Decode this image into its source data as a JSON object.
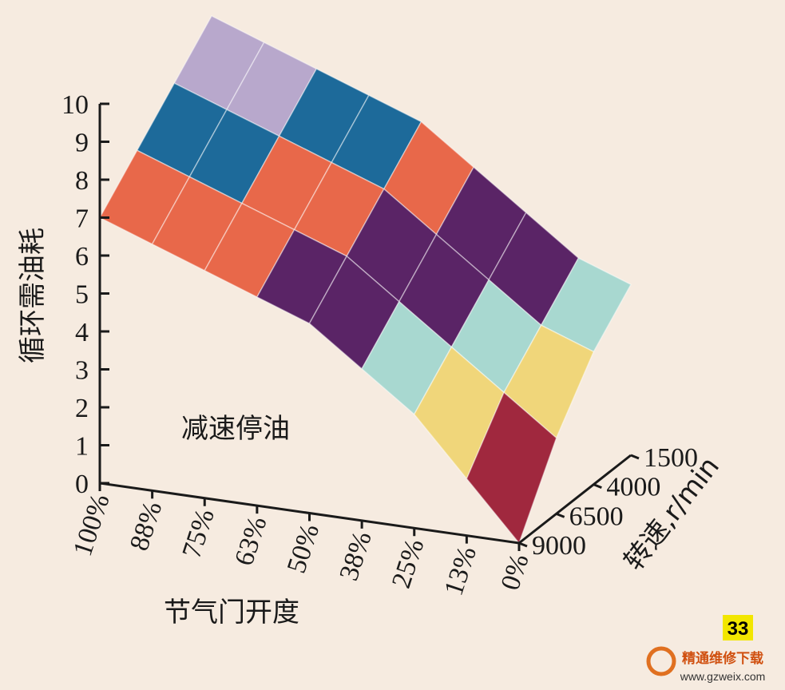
{
  "chart_data": {
    "type": "surface",
    "z_label": "循环需油耗",
    "x_label": "节气门开度",
    "y_label": "转速,r/min",
    "annotation": "减速停油",
    "categories": [
      "100%",
      "88%",
      "75%",
      "63%",
      "50%",
      "38%",
      "25%",
      "13%",
      "0%"
    ],
    "ylim": [
      1500,
      9000
    ],
    "yticks": [
      1500,
      4000,
      6500,
      9000
    ],
    "zlim": [
      0,
      10
    ],
    "zticks": [
      0,
      1,
      2,
      3,
      4,
      5,
      6,
      7,
      8,
      9,
      10
    ],
    "z": [
      [
        10,
        9.5,
        9,
        8.5,
        8,
        7,
        6,
        5,
        4.5
      ],
      [
        9,
        8.5,
        8,
        7.5,
        7,
        6,
        5,
        4,
        3.5
      ],
      [
        8,
        7.5,
        7,
        6.5,
        6,
        5,
        4,
        3,
        2
      ],
      [
        7,
        6.5,
        6,
        5.5,
        5,
        4,
        3,
        1.5,
        0
      ]
    ],
    "colors": [
      "#7b84b8",
      "#a0283e",
      "#f0d67a",
      "#a8d8d0",
      "#5a2466",
      "#e8684a",
      "#1d6a9a",
      "#b8a8cc"
    ]
  },
  "page_number": "33",
  "watermark": {
    "name": "精通维修下载",
    "url": "www.gzweix.com"
  }
}
